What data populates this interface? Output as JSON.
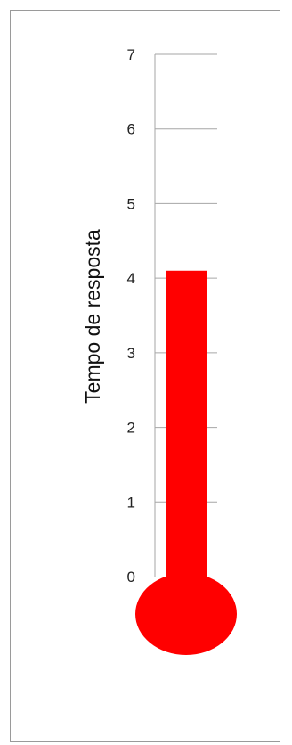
{
  "chart_data": {
    "type": "bar",
    "style": "thermometer",
    "categories": [
      ""
    ],
    "values": [
      4.1
    ],
    "title": "",
    "xlabel": "",
    "ylabel": "Tempo de resposta",
    "ylim": [
      0,
      7
    ],
    "yticks": [
      "0",
      "1",
      "2",
      "3",
      "4",
      "5",
      "6",
      "7"
    ],
    "grid": true,
    "legend": "none",
    "bar_color": "#ff0000",
    "grid_color": "#a6a6a6"
  }
}
